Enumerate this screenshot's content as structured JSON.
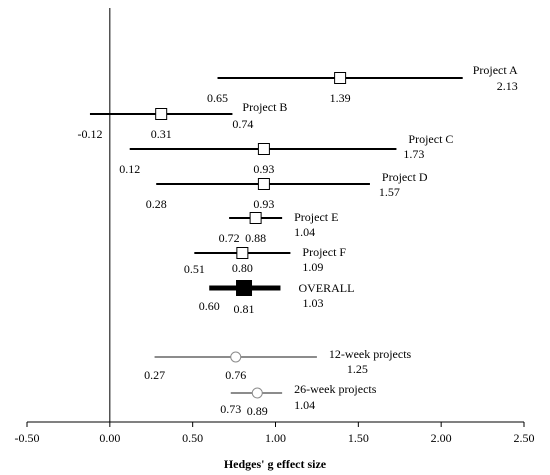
{
  "chart_data": {
    "type": "forest",
    "xlabel": "Hedges' g effect size",
    "xlim": [
      -0.5,
      2.5
    ],
    "xticks": [
      "-0.50",
      "0.00",
      "0.50",
      "1.00",
      "1.50",
      "2.00",
      "2.50"
    ],
    "xtick_values": [
      -0.5,
      0,
      0.5,
      1.0,
      1.5,
      2.0,
      2.5
    ],
    "rows": [
      {
        "name": "Project A",
        "estimate": 1.39,
        "lower": 0.65,
        "upper": 2.13,
        "estimate_label": "1.39",
        "lower_label": "0.65",
        "upper_label": "2.13",
        "kind": "project"
      },
      {
        "name": "Project B",
        "estimate": 0.31,
        "lower": -0.12,
        "upper": 0.74,
        "estimate_label": "0.31",
        "lower_label": "-0.12",
        "upper_label": "0.74",
        "kind": "project"
      },
      {
        "name": "Project C",
        "estimate": 0.93,
        "lower": 0.12,
        "upper": 1.73,
        "estimate_label": "0.93",
        "lower_label": "0.12",
        "upper_label": "1.73",
        "kind": "project"
      },
      {
        "name": "Project D",
        "estimate": 0.93,
        "lower": 0.28,
        "upper": 1.57,
        "estimate_label": "0.93",
        "lower_label": "0.28",
        "upper_label": "1.57",
        "kind": "project"
      },
      {
        "name": "Project E",
        "estimate": 0.88,
        "lower": 0.72,
        "upper": 1.04,
        "estimate_label": "0.88",
        "lower_label": "0.72",
        "upper_label": "1.04",
        "kind": "project"
      },
      {
        "name": "Project F",
        "estimate": 0.8,
        "lower": 0.51,
        "upper": 1.09,
        "estimate_label": "0.80",
        "lower_label": "0.51",
        "upper_label": "1.09",
        "kind": "project"
      },
      {
        "name": "OVERALL",
        "estimate": 0.81,
        "lower": 0.6,
        "upper": 1.03,
        "estimate_label": "0.81",
        "lower_label": "0.60",
        "upper_label": "1.03",
        "kind": "overall"
      },
      {
        "name": "12-week projects",
        "estimate": 0.76,
        "lower": 0.27,
        "upper": 1.25,
        "estimate_label": "0.76",
        "lower_label": "0.27",
        "upper_label": "1.25",
        "kind": "subgroup"
      },
      {
        "name": "26-week projects",
        "estimate": 0.89,
        "lower": 0.73,
        "upper": 1.04,
        "estimate_label": "0.89",
        "lower_label": "0.73",
        "upper_label": "1.04",
        "kind": "subgroup"
      }
    ],
    "colors": {
      "project": "#000000",
      "overall": "#000000",
      "subgroup": "#8c8c8c",
      "axis": "#000000"
    }
  }
}
